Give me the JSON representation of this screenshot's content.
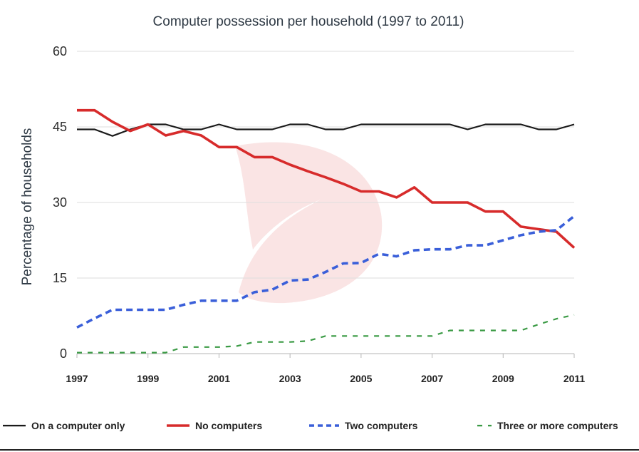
{
  "chart_data": {
    "type": "line",
    "title": "Computer possession per household (1997 to 2011)",
    "ylabel": "Percentage of households",
    "xlabel": "",
    "ylim": [
      0,
      60
    ],
    "yticks": [
      0,
      15,
      30,
      45,
      60
    ],
    "xlim": [
      1997,
      2011
    ],
    "xticks": [
      "1997",
      "1999",
      "2001",
      "2003",
      "2005",
      "2007",
      "2009",
      "2011"
    ],
    "grid": true,
    "legend_position": "bottom",
    "x": [
      1997,
      1997.5,
      1998,
      1998.5,
      1999,
      1999.5,
      2000,
      2000.5,
      2001,
      2001.5,
      2002,
      2002.5,
      2003,
      2003.5,
      2004,
      2004.5,
      2005,
      2005.5,
      2006,
      2006.5,
      2007,
      2007.5,
      2008,
      2008.5,
      2009,
      2009.5,
      2010,
      2010.5,
      2011
    ],
    "series": [
      {
        "name": "On a computer only",
        "color": "#1a1a1a",
        "dash": "solid",
        "values": [
          44.5,
          44.5,
          43.2,
          44.5,
          45.5,
          45.5,
          44.5,
          44.5,
          45.5,
          44.5,
          44.5,
          44.5,
          45.5,
          45.5,
          44.5,
          44.5,
          45.5,
          45.5,
          45.5,
          45.5,
          45.5,
          45.5,
          44.5,
          45.5,
          45.5,
          45.5,
          44.5,
          44.5,
          45.5
        ]
      },
      {
        "name": "No computers",
        "color": "#d72b2b",
        "dash": "solid",
        "values": [
          48.3,
          48.3,
          46.0,
          44.2,
          45.5,
          43.3,
          44.2,
          43.3,
          41.0,
          41.0,
          39.0,
          39.0,
          37.5,
          36.2,
          35.0,
          33.7,
          32.2,
          32.2,
          31.0,
          33.0,
          30.0,
          30.0,
          30.0,
          28.2,
          28.2,
          25.2,
          24.7,
          24.2,
          21.0
        ]
      },
      {
        "name": "Two computers",
        "color": "#3a5fd9",
        "dash": "dash",
        "values": [
          5.2,
          7.0,
          8.7,
          8.7,
          8.7,
          8.7,
          9.7,
          10.5,
          10.5,
          10.5,
          12.2,
          12.7,
          14.5,
          14.7,
          16.2,
          17.9,
          18.0,
          19.8,
          19.3,
          20.5,
          20.7,
          20.7,
          21.5,
          21.5,
          22.5,
          23.5,
          24.2,
          24.5,
          27.3
        ]
      },
      {
        "name": "Three or more computers",
        "color": "#3a9a44",
        "dash": "dash",
        "values": [
          0.2,
          0.2,
          0.2,
          0.2,
          0.2,
          0.2,
          1.3,
          1.3,
          1.3,
          1.5,
          2.3,
          2.3,
          2.3,
          2.5,
          3.5,
          3.5,
          3.5,
          3.5,
          3.5,
          3.5,
          3.5,
          4.6,
          4.6,
          4.6,
          4.6,
          4.6,
          5.8,
          6.9,
          7.7
        ]
      }
    ]
  }
}
